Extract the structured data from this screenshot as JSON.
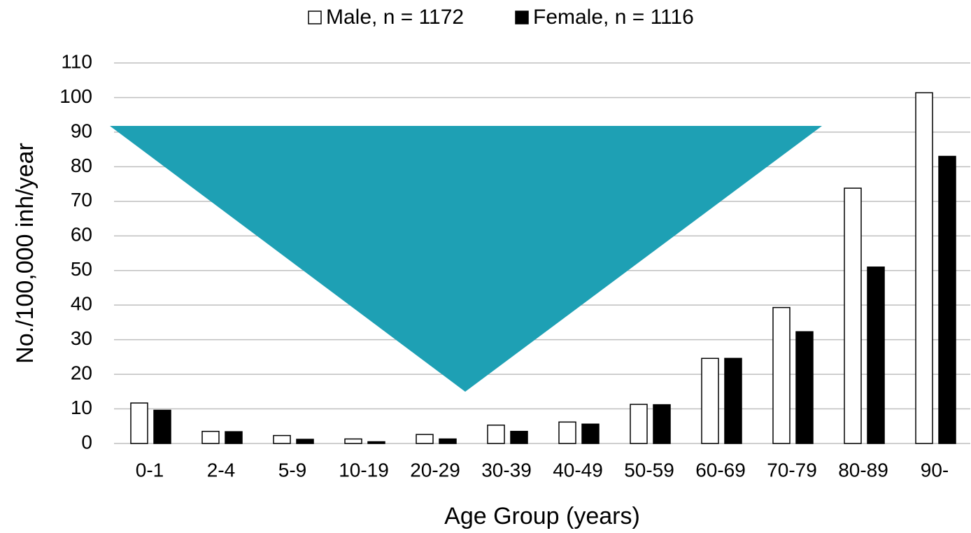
{
  "chart_data": {
    "type": "bar",
    "x_label": "Age Group (years)",
    "y_label": "No./100,000 inh/year",
    "categories": [
      "0-1",
      "2-4",
      "5-9",
      "10-19",
      "20-29",
      "30-39",
      "40-49",
      "50-59",
      "60-69",
      "70-79",
      "80-89",
      "90-"
    ],
    "series": [
      {
        "name": "Male, n = 1172",
        "color": "#ffffff",
        "values": [
          11.7,
          3.5,
          2.3,
          1.3,
          2.6,
          5.3,
          6.2,
          11.3,
          24.6,
          39.3,
          73.8,
          101.4
        ]
      },
      {
        "name": "Female, n = 1116",
        "color": "#000000",
        "values": [
          9.6,
          3.4,
          1.2,
          0.5,
          1.3,
          3.5,
          5.6,
          11.2,
          24.6,
          32.3,
          51,
          83
        ]
      }
    ],
    "ylim": [
      0,
      110
    ],
    "yticks": [
      0,
      10,
      20,
      30,
      40,
      50,
      60,
      70,
      80,
      90,
      100,
      110
    ],
    "grid": true,
    "legend": "top"
  }
}
